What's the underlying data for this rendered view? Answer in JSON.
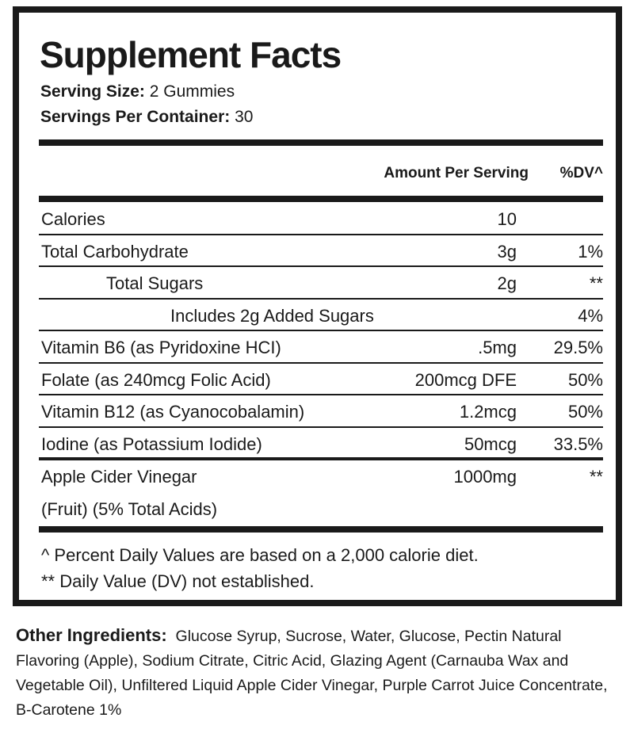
{
  "title": "Supplement Facts",
  "serving_size": {
    "label": "Serving Size:",
    "value": "2 Gummies"
  },
  "servings_per_container": {
    "label": "Servings Per Container:",
    "value": "30"
  },
  "header": {
    "amount": "Amount Per Serving",
    "dv": "%DV^"
  },
  "rows": [
    {
      "name": "Calories",
      "amount": "10",
      "dv": ""
    },
    {
      "name": "Total Carbohydrate",
      "amount": "3g",
      "dv": "1%"
    },
    {
      "name": "Total Sugars",
      "amount": "2g",
      "dv": "**"
    },
    {
      "name": "Includes 2g Added Sugars",
      "amount": "",
      "dv": "4%"
    },
    {
      "name": "Vitamin B6 (as Pyridoxine HCI)",
      "amount": ".5mg",
      "dv": "29.5%"
    },
    {
      "name": "Folate (as 240mcg Folic Acid)",
      "amount": "200mcg DFE",
      "dv": "50%"
    },
    {
      "name": "Vitamin B12 (as Cyanocobalamin)",
      "amount": "1.2mcg",
      "dv": "50%"
    },
    {
      "name": "Iodine (as Potassium Iodide)",
      "amount": "50mcg",
      "dv": "33.5%"
    },
    {
      "name": "Apple Cider Vinegar",
      "name_line2": "(Fruit) (5% Total Acids)",
      "amount": "1000mg",
      "dv": "**"
    }
  ],
  "footnotes": [
    "^ Percent Daily Values are based on a 2,000 calorie diet.",
    "** Daily Value (DV) not established."
  ],
  "other_ingredients": {
    "label": "Other Ingredients:",
    "text": "Glucose Syrup, Sucrose, Water, Glucose, Pectin Natural Flavoring (Apple), Sodium Citrate, Citric Acid, Glazing Agent (Carnauba Wax and Vegetable Oil), Unfiltered Liquid Apple Cider Vinegar, Purple Carrot Juice Concentrate, B-Carotene 1%"
  }
}
